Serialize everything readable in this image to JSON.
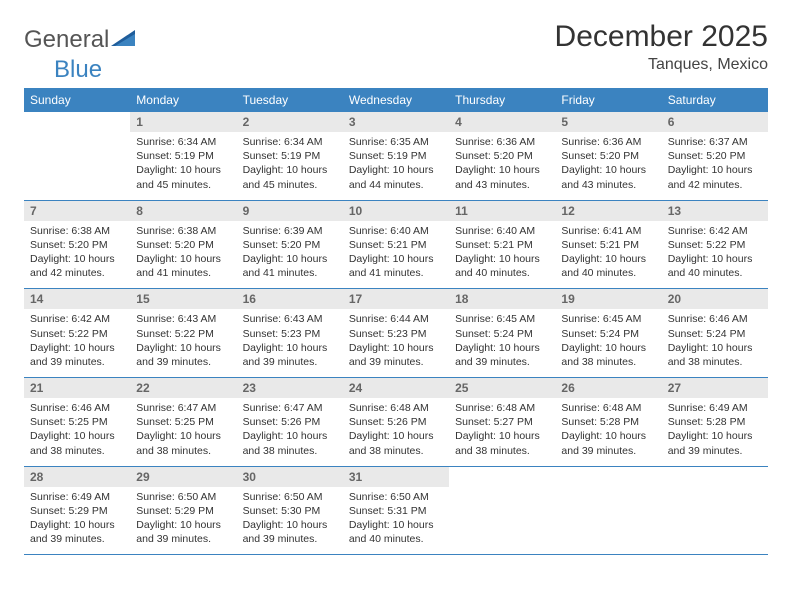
{
  "brand": {
    "part1": "General",
    "part2": "Blue"
  },
  "title": "December 2025",
  "location": "Tanques, Mexico",
  "colors": {
    "header_bg": "#3b83c0",
    "header_text": "#ffffff",
    "daynum_bg": "#e9e9e9",
    "daynum_text": "#666666",
    "body_text": "#333333",
    "divider": "#3b83c0",
    "page_bg": "#ffffff"
  },
  "typography": {
    "title_fontsize": 30,
    "location_fontsize": 16,
    "header_fontsize": 12,
    "daynum_fontsize": 12,
    "body_fontsize": 10.5
  },
  "weekdays": [
    "Sunday",
    "Monday",
    "Tuesday",
    "Wednesday",
    "Thursday",
    "Friday",
    "Saturday"
  ],
  "weeks": [
    [
      {
        "n": "",
        "sr": "",
        "ss": "",
        "dl": ""
      },
      {
        "n": "1",
        "sr": "Sunrise: 6:34 AM",
        "ss": "Sunset: 5:19 PM",
        "dl": "Daylight: 10 hours and 45 minutes."
      },
      {
        "n": "2",
        "sr": "Sunrise: 6:34 AM",
        "ss": "Sunset: 5:19 PM",
        "dl": "Daylight: 10 hours and 45 minutes."
      },
      {
        "n": "3",
        "sr": "Sunrise: 6:35 AM",
        "ss": "Sunset: 5:19 PM",
        "dl": "Daylight: 10 hours and 44 minutes."
      },
      {
        "n": "4",
        "sr": "Sunrise: 6:36 AM",
        "ss": "Sunset: 5:20 PM",
        "dl": "Daylight: 10 hours and 43 minutes."
      },
      {
        "n": "5",
        "sr": "Sunrise: 6:36 AM",
        "ss": "Sunset: 5:20 PM",
        "dl": "Daylight: 10 hours and 43 minutes."
      },
      {
        "n": "6",
        "sr": "Sunrise: 6:37 AM",
        "ss": "Sunset: 5:20 PM",
        "dl": "Daylight: 10 hours and 42 minutes."
      }
    ],
    [
      {
        "n": "7",
        "sr": "Sunrise: 6:38 AM",
        "ss": "Sunset: 5:20 PM",
        "dl": "Daylight: 10 hours and 42 minutes."
      },
      {
        "n": "8",
        "sr": "Sunrise: 6:38 AM",
        "ss": "Sunset: 5:20 PM",
        "dl": "Daylight: 10 hours and 41 minutes."
      },
      {
        "n": "9",
        "sr": "Sunrise: 6:39 AM",
        "ss": "Sunset: 5:20 PM",
        "dl": "Daylight: 10 hours and 41 minutes."
      },
      {
        "n": "10",
        "sr": "Sunrise: 6:40 AM",
        "ss": "Sunset: 5:21 PM",
        "dl": "Daylight: 10 hours and 41 minutes."
      },
      {
        "n": "11",
        "sr": "Sunrise: 6:40 AM",
        "ss": "Sunset: 5:21 PM",
        "dl": "Daylight: 10 hours and 40 minutes."
      },
      {
        "n": "12",
        "sr": "Sunrise: 6:41 AM",
        "ss": "Sunset: 5:21 PM",
        "dl": "Daylight: 10 hours and 40 minutes."
      },
      {
        "n": "13",
        "sr": "Sunrise: 6:42 AM",
        "ss": "Sunset: 5:22 PM",
        "dl": "Daylight: 10 hours and 40 minutes."
      }
    ],
    [
      {
        "n": "14",
        "sr": "Sunrise: 6:42 AM",
        "ss": "Sunset: 5:22 PM",
        "dl": "Daylight: 10 hours and 39 minutes."
      },
      {
        "n": "15",
        "sr": "Sunrise: 6:43 AM",
        "ss": "Sunset: 5:22 PM",
        "dl": "Daylight: 10 hours and 39 minutes."
      },
      {
        "n": "16",
        "sr": "Sunrise: 6:43 AM",
        "ss": "Sunset: 5:23 PM",
        "dl": "Daylight: 10 hours and 39 minutes."
      },
      {
        "n": "17",
        "sr": "Sunrise: 6:44 AM",
        "ss": "Sunset: 5:23 PM",
        "dl": "Daylight: 10 hours and 39 minutes."
      },
      {
        "n": "18",
        "sr": "Sunrise: 6:45 AM",
        "ss": "Sunset: 5:24 PM",
        "dl": "Daylight: 10 hours and 39 minutes."
      },
      {
        "n": "19",
        "sr": "Sunrise: 6:45 AM",
        "ss": "Sunset: 5:24 PM",
        "dl": "Daylight: 10 hours and 38 minutes."
      },
      {
        "n": "20",
        "sr": "Sunrise: 6:46 AM",
        "ss": "Sunset: 5:24 PM",
        "dl": "Daylight: 10 hours and 38 minutes."
      }
    ],
    [
      {
        "n": "21",
        "sr": "Sunrise: 6:46 AM",
        "ss": "Sunset: 5:25 PM",
        "dl": "Daylight: 10 hours and 38 minutes."
      },
      {
        "n": "22",
        "sr": "Sunrise: 6:47 AM",
        "ss": "Sunset: 5:25 PM",
        "dl": "Daylight: 10 hours and 38 minutes."
      },
      {
        "n": "23",
        "sr": "Sunrise: 6:47 AM",
        "ss": "Sunset: 5:26 PM",
        "dl": "Daylight: 10 hours and 38 minutes."
      },
      {
        "n": "24",
        "sr": "Sunrise: 6:48 AM",
        "ss": "Sunset: 5:26 PM",
        "dl": "Daylight: 10 hours and 38 minutes."
      },
      {
        "n": "25",
        "sr": "Sunrise: 6:48 AM",
        "ss": "Sunset: 5:27 PM",
        "dl": "Daylight: 10 hours and 38 minutes."
      },
      {
        "n": "26",
        "sr": "Sunrise: 6:48 AM",
        "ss": "Sunset: 5:28 PM",
        "dl": "Daylight: 10 hours and 39 minutes."
      },
      {
        "n": "27",
        "sr": "Sunrise: 6:49 AM",
        "ss": "Sunset: 5:28 PM",
        "dl": "Daylight: 10 hours and 39 minutes."
      }
    ],
    [
      {
        "n": "28",
        "sr": "Sunrise: 6:49 AM",
        "ss": "Sunset: 5:29 PM",
        "dl": "Daylight: 10 hours and 39 minutes."
      },
      {
        "n": "29",
        "sr": "Sunrise: 6:50 AM",
        "ss": "Sunset: 5:29 PM",
        "dl": "Daylight: 10 hours and 39 minutes."
      },
      {
        "n": "30",
        "sr": "Sunrise: 6:50 AM",
        "ss": "Sunset: 5:30 PM",
        "dl": "Daylight: 10 hours and 39 minutes."
      },
      {
        "n": "31",
        "sr": "Sunrise: 6:50 AM",
        "ss": "Sunset: 5:31 PM",
        "dl": "Daylight: 10 hours and 40 minutes."
      },
      {
        "n": "",
        "sr": "",
        "ss": "",
        "dl": ""
      },
      {
        "n": "",
        "sr": "",
        "ss": "",
        "dl": ""
      },
      {
        "n": "",
        "sr": "",
        "ss": "",
        "dl": ""
      }
    ]
  ]
}
